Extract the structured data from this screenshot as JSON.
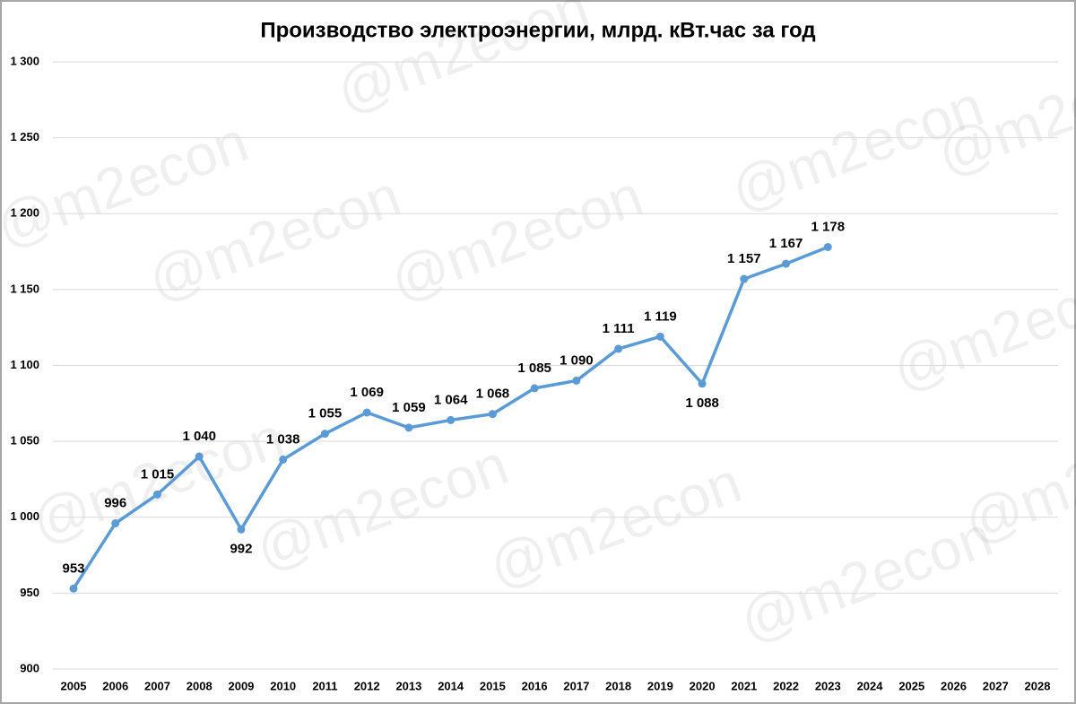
{
  "chart_data": {
    "type": "line",
    "title": "Производство электроэнергии, млрд. кВт.час за год",
    "watermark": "@m2econ",
    "categories": [
      "2005",
      "2006",
      "2007",
      "2008",
      "2009",
      "2010",
      "2011",
      "2012",
      "2013",
      "2014",
      "2015",
      "2016",
      "2017",
      "2018",
      "2019",
      "2020",
      "2021",
      "2022",
      "2023",
      "2024",
      "2025",
      "2026",
      "2027",
      "2028"
    ],
    "series": [
      {
        "name": "Производство электроэнергии",
        "color": "#5b9bd5",
        "values": [
          953,
          996,
          1015,
          1040,
          992,
          1038,
          1055,
          1069,
          1059,
          1064,
          1068,
          1085,
          1090,
          1111,
          1119,
          1088,
          1157,
          1167,
          1178,
          null,
          null,
          null,
          null,
          null
        ],
        "value_labels": [
          "953",
          "996",
          "1 015",
          "1 040",
          "992",
          "1 038",
          "1 055",
          "1 069",
          "1 059",
          "1 064",
          "1 068",
          "1 085",
          "1 090",
          "1 111",
          "1 119",
          "1 088",
          "1 157",
          "1 167",
          "1 178",
          null,
          null,
          null,
          null,
          null
        ]
      }
    ],
    "ylim": [
      900,
      1300
    ],
    "yticks": [
      900,
      950,
      {
        "value": 1000,
        "label": "1 000"
      },
      {
        "value": 1050,
        "label": "1 050"
      },
      {
        "value": 1100,
        "label": "1 100"
      },
      {
        "value": 1150,
        "label": "1 150"
      },
      {
        "value": 1200,
        "label": "1 200"
      },
      {
        "value": 1250,
        "label": "1 250"
      },
      {
        "value": 1300,
        "label": "1 300"
      }
    ],
    "grid": true
  }
}
